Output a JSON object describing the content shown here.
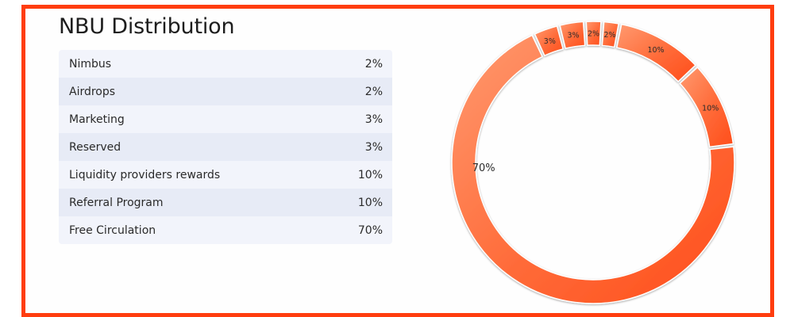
{
  "title": "NBU Distribution",
  "colors": {
    "frame": "#ff3d0f",
    "slice_light": "#ff8a5c",
    "slice_dark": "#ff5a26",
    "row_odd": "#f2f4fb",
    "row_even": "#e7ebf6"
  },
  "chart_data": {
    "type": "pie",
    "title": "NBU Distribution",
    "categories": [
      "Nimbus",
      "Airdrops",
      "Marketing",
      "Reserved",
      "Liquidity providers rewards",
      "Referral Program",
      "Free Circulation"
    ],
    "values": [
      2,
      2,
      3,
      3,
      10,
      10,
      70
    ],
    "value_labels": [
      "2%",
      "2%",
      "3%",
      "3%",
      "10%",
      "10%",
      "70%"
    ],
    "donut": true
  }
}
